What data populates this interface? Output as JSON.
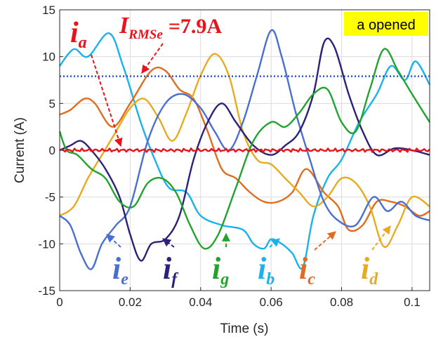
{
  "chart_data": {
    "type": "line",
    "xlabel": "Time (s)",
    "ylabel": "Current (A)",
    "xlim": [
      0,
      0.105
    ],
    "ylim": [
      -15,
      15
    ],
    "grid": true,
    "x_ticks": [
      "0",
      "0.02",
      "0.04",
      "0.06",
      "0.08",
      "0.1"
    ],
    "x_tick_values": [
      0,
      0.02,
      0.04,
      0.06,
      0.08,
      0.1
    ],
    "y_ticks": [
      "15",
      "10",
      "5",
      "0",
      "-5",
      "-10",
      "-15"
    ],
    "y_tick_values": [
      15,
      10,
      5,
      0,
      -5,
      -10,
      -15
    ],
    "badge": "a opened",
    "rms_label": {
      "main": "I",
      "sub": "RMSe",
      "value": "=7.9A"
    },
    "series": [
      {
        "label_main": "i",
        "label_sub": "a",
        "color": "#e8141b",
        "x": [
          0,
          0.01,
          0.02,
          0.03,
          0.04,
          0.05,
          0.06,
          0.07,
          0.08,
          0.09,
          0.105
        ],
        "y": [
          0,
          0.1,
          -0.1,
          0.05,
          -0.05,
          0.1,
          0,
          -0.1,
          0.05,
          0.1,
          0
        ]
      },
      {
        "label_main": "i",
        "label_sub": "b",
        "color": "#1ab2ec",
        "x": [
          0,
          0.004,
          0.008,
          0.014,
          0.018,
          0.023,
          0.027,
          0.031,
          0.036,
          0.04,
          0.046,
          0.052,
          0.055,
          0.058,
          0.06,
          0.063,
          0.066,
          0.069,
          0.072,
          0.076,
          0.08,
          0.085,
          0.09,
          0.094,
          0.098,
          0.101,
          0.105
        ],
        "y": [
          9,
          10.8,
          10,
          12.5,
          9,
          3,
          -1,
          -4,
          -4.5,
          -7,
          -8,
          -8.5,
          -10,
          -10.5,
          -9.5,
          -10,
          -11,
          -12.5,
          -7,
          -3,
          -1,
          3,
          6,
          9,
          7.5,
          9.5,
          7
        ]
      },
      {
        "label_main": "i",
        "label_sub": "c",
        "color": "#e36b1d",
        "x": [
          0,
          0.003,
          0.007,
          0.01,
          0.015,
          0.02,
          0.026,
          0.03,
          0.034,
          0.038,
          0.042,
          0.046,
          0.05,
          0.054,
          0.058,
          0.062,
          0.066,
          0.07,
          0.075,
          0.079,
          0.082,
          0.086,
          0.09,
          0.094,
          0.098,
          0.102,
          0.105
        ],
        "y": [
          3.8,
          4.3,
          5.5,
          5,
          2.5,
          5,
          8.5,
          8.5,
          6.5,
          5.5,
          2,
          -2,
          -3,
          -4.5,
          -5.5,
          -5.5,
          -4.5,
          -2,
          -4.5,
          -6,
          -8.5,
          -8,
          -5.5,
          -5.5,
          -6,
          -7,
          -6.5
        ]
      },
      {
        "label_main": "i",
        "label_sub": "d",
        "color": "#e8ab20",
        "x": [
          0,
          0.004,
          0.008,
          0.012,
          0.016,
          0.02,
          0.024,
          0.028,
          0.032,
          0.036,
          0.04,
          0.044,
          0.048,
          0.052,
          0.056,
          0.06,
          0.064,
          0.068,
          0.072,
          0.076,
          0.08,
          0.084,
          0.088,
          0.092,
          0.096,
          0.1,
          0.105
        ],
        "y": [
          -7,
          -6,
          -3,
          -0.5,
          2,
          4.5,
          5.5,
          3.5,
          1,
          4,
          8,
          10.3,
          8,
          2,
          -1,
          -1.5,
          -3,
          -4.5,
          -6,
          -5,
          -3,
          -3.5,
          -6,
          -10.3,
          -8,
          -5,
          -6
        ]
      },
      {
        "label_main": "i",
        "label_sub": "e",
        "color": "#4a6fd1",
        "x": [
          0,
          0.003,
          0.006,
          0.009,
          0.012,
          0.016,
          0.02,
          0.025,
          0.03,
          0.035,
          0.04,
          0.044,
          0.048,
          0.052,
          0.056,
          0.06,
          0.063,
          0.067,
          0.071,
          0.075,
          0.079,
          0.084,
          0.089,
          0.093,
          0.097,
          0.101,
          0.105
        ],
        "y": [
          -7,
          -8,
          -11,
          -12.7,
          -10,
          -8,
          -6,
          1,
          5,
          6,
          4.5,
          2,
          0,
          3,
          8,
          12.8,
          10,
          4,
          -1,
          -5.5,
          -7.5,
          -8,
          -5,
          -6.5,
          -5.5,
          -7,
          -7.5
        ]
      },
      {
        "label_main": "i",
        "label_sub": "f",
        "color": "#2b2178",
        "x": [
          0,
          0.003,
          0.006,
          0.009,
          0.013,
          0.017,
          0.02,
          0.023,
          0.026,
          0.03,
          0.034,
          0.038,
          0.042,
          0.046,
          0.05,
          0.055,
          0.06,
          0.064,
          0.068,
          0.072,
          0.075,
          0.078,
          0.082,
          0.086,
          0.09,
          0.095,
          0.1,
          0.105
        ],
        "y": [
          0,
          0.5,
          1,
          0,
          -2,
          -5,
          -9,
          -11.8,
          -10,
          -9.5,
          -7,
          -1,
          3,
          5,
          3,
          0.5,
          -0.5,
          0.5,
          2,
          6,
          11.5,
          11,
          6,
          2,
          -0.5,
          0.2,
          0,
          -0.5
        ]
      },
      {
        "label_main": "i",
        "label_sub": "g",
        "color": "#22a32e",
        "x": [
          0,
          0.002,
          0.005,
          0.009,
          0.013,
          0.017,
          0.021,
          0.025,
          0.029,
          0.033,
          0.037,
          0.041,
          0.045,
          0.05,
          0.055,
          0.06,
          0.064,
          0.068,
          0.072,
          0.076,
          0.08,
          0.084,
          0.088,
          0.092,
          0.096,
          0.1,
          0.105
        ],
        "y": [
          2,
          0,
          -0.5,
          -2,
          -3,
          -5.5,
          -6,
          -3.5,
          -3,
          -4.5,
          -8,
          -10.5,
          -9,
          -4,
          1,
          3,
          2.5,
          4,
          6,
          6.5,
          3,
          2,
          6.5,
          10.8,
          8.5,
          6,
          3
        ]
      }
    ]
  }
}
